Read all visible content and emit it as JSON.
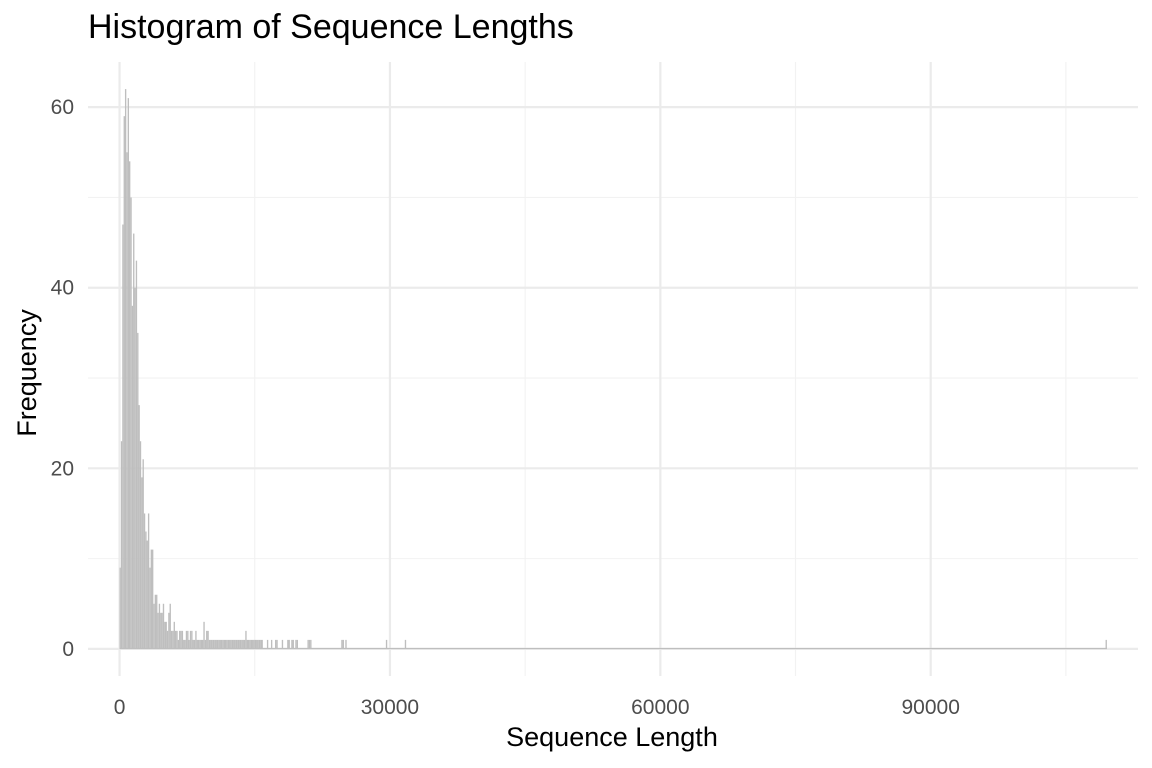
{
  "chart_data": {
    "type": "bar",
    "title": "Histogram of Sequence Lengths",
    "xlabel": "Sequence Length",
    "ylabel": "Frequency",
    "xlim": [
      -3500,
      113000
    ],
    "ylim": [
      -3,
      65
    ],
    "x_ticks": [
      0,
      30000,
      60000,
      90000
    ],
    "x_tick_labels": [
      "0",
      "30000",
      "60000",
      "90000"
    ],
    "y_ticks": [
      0,
      20,
      40,
      60
    ],
    "y_tick_labels": [
      "0",
      "20",
      "40",
      "60"
    ],
    "bin_width": 150,
    "grid": true,
    "bar_color": "#bebebe",
    "bins": [
      {
        "x": 0,
        "y": 9
      },
      {
        "x": 150,
        "y": 23
      },
      {
        "x": 300,
        "y": 47
      },
      {
        "x": 450,
        "y": 59
      },
      {
        "x": 600,
        "y": 62
      },
      {
        "x": 750,
        "y": 55
      },
      {
        "x": 900,
        "y": 61
      },
      {
        "x": 1050,
        "y": 54
      },
      {
        "x": 1200,
        "y": 50
      },
      {
        "x": 1350,
        "y": 38
      },
      {
        "x": 1500,
        "y": 46
      },
      {
        "x": 1650,
        "y": 40
      },
      {
        "x": 1800,
        "y": 43
      },
      {
        "x": 1950,
        "y": 35
      },
      {
        "x": 2100,
        "y": 27
      },
      {
        "x": 2250,
        "y": 23
      },
      {
        "x": 2400,
        "y": 19
      },
      {
        "x": 2550,
        "y": 21
      },
      {
        "x": 2700,
        "y": 15
      },
      {
        "x": 2850,
        "y": 13
      },
      {
        "x": 3000,
        "y": 12
      },
      {
        "x": 3150,
        "y": 15
      },
      {
        "x": 3300,
        "y": 9
      },
      {
        "x": 3450,
        "y": 11
      },
      {
        "x": 3600,
        "y": 11
      },
      {
        "x": 3750,
        "y": 5
      },
      {
        "x": 3900,
        "y": 6
      },
      {
        "x": 4050,
        "y": 6
      },
      {
        "x": 4200,
        "y": 4
      },
      {
        "x": 4350,
        "y": 5
      },
      {
        "x": 4500,
        "y": 4
      },
      {
        "x": 4650,
        "y": 4
      },
      {
        "x": 4800,
        "y": 5
      },
      {
        "x": 4950,
        "y": 3
      },
      {
        "x": 5100,
        "y": 3
      },
      {
        "x": 5250,
        "y": 2
      },
      {
        "x": 5400,
        "y": 4
      },
      {
        "x": 5550,
        "y": 5
      },
      {
        "x": 5700,
        "y": 2
      },
      {
        "x": 5850,
        "y": 2
      },
      {
        "x": 6000,
        "y": 3
      },
      {
        "x": 6150,
        "y": 2
      },
      {
        "x": 6300,
        "y": 2
      },
      {
        "x": 6450,
        "y": 1
      },
      {
        "x": 6600,
        "y": 2
      },
      {
        "x": 6750,
        "y": 2
      },
      {
        "x": 6900,
        "y": 2
      },
      {
        "x": 7050,
        "y": 1
      },
      {
        "x": 7200,
        "y": 1
      },
      {
        "x": 7350,
        "y": 2
      },
      {
        "x": 7500,
        "y": 2
      },
      {
        "x": 7650,
        "y": 1
      },
      {
        "x": 7800,
        "y": 2
      },
      {
        "x": 7950,
        "y": 2
      },
      {
        "x": 8100,
        "y": 1
      },
      {
        "x": 8250,
        "y": 1
      },
      {
        "x": 8400,
        "y": 2
      },
      {
        "x": 8550,
        "y": 1
      },
      {
        "x": 8700,
        "y": 1
      },
      {
        "x": 8850,
        "y": 1
      },
      {
        "x": 9000,
        "y": 1
      },
      {
        "x": 9150,
        "y": 1
      },
      {
        "x": 9300,
        "y": 3
      },
      {
        "x": 9450,
        "y": 1
      },
      {
        "x": 9600,
        "y": 2
      },
      {
        "x": 9750,
        "y": 2
      },
      {
        "x": 9900,
        "y": 1
      },
      {
        "x": 10050,
        "y": 1
      },
      {
        "x": 10200,
        "y": 1
      },
      {
        "x": 10350,
        "y": 1
      },
      {
        "x": 10500,
        "y": 1
      },
      {
        "x": 10650,
        "y": 1
      },
      {
        "x": 10800,
        "y": 1
      },
      {
        "x": 10950,
        "y": 1
      },
      {
        "x": 11100,
        "y": 1
      },
      {
        "x": 11250,
        "y": 1
      },
      {
        "x": 11400,
        "y": 1
      },
      {
        "x": 11550,
        "y": 1
      },
      {
        "x": 11700,
        "y": 1
      },
      {
        "x": 11850,
        "y": 1
      },
      {
        "x": 12000,
        "y": 1
      },
      {
        "x": 12150,
        "y": 1
      },
      {
        "x": 12300,
        "y": 1
      },
      {
        "x": 12450,
        "y": 1
      },
      {
        "x": 12600,
        "y": 1
      },
      {
        "x": 12750,
        "y": 1
      },
      {
        "x": 12900,
        "y": 1
      },
      {
        "x": 13050,
        "y": 1
      },
      {
        "x": 13200,
        "y": 1
      },
      {
        "x": 13350,
        "y": 1
      },
      {
        "x": 13500,
        "y": 1
      },
      {
        "x": 13650,
        "y": 1
      },
      {
        "x": 13800,
        "y": 1
      },
      {
        "x": 13950,
        "y": 2
      },
      {
        "x": 14100,
        "y": 1
      },
      {
        "x": 14250,
        "y": 1
      },
      {
        "x": 14400,
        "y": 1
      },
      {
        "x": 14550,
        "y": 1
      },
      {
        "x": 14700,
        "y": 1
      },
      {
        "x": 14850,
        "y": 1
      },
      {
        "x": 15000,
        "y": 1
      },
      {
        "x": 15150,
        "y": 1
      },
      {
        "x": 15300,
        "y": 1
      },
      {
        "x": 15450,
        "y": 1
      },
      {
        "x": 15600,
        "y": 1
      },
      {
        "x": 15750,
        "y": 1
      },
      {
        "x": 16350,
        "y": 1
      },
      {
        "x": 16800,
        "y": 1
      },
      {
        "x": 17250,
        "y": 1
      },
      {
        "x": 17400,
        "y": 1
      },
      {
        "x": 18000,
        "y": 1
      },
      {
        "x": 18600,
        "y": 1
      },
      {
        "x": 18750,
        "y": 1
      },
      {
        "x": 19050,
        "y": 1
      },
      {
        "x": 19200,
        "y": 1
      },
      {
        "x": 19500,
        "y": 1
      },
      {
        "x": 19650,
        "y": 1
      },
      {
        "x": 20850,
        "y": 1
      },
      {
        "x": 21000,
        "y": 1
      },
      {
        "x": 21150,
        "y": 1
      },
      {
        "x": 24600,
        "y": 1
      },
      {
        "x": 24750,
        "y": 1
      },
      {
        "x": 25050,
        "y": 1
      },
      {
        "x": 29550,
        "y": 1
      },
      {
        "x": 31650,
        "y": 1
      },
      {
        "x": 109400,
        "y": 1
      }
    ]
  }
}
